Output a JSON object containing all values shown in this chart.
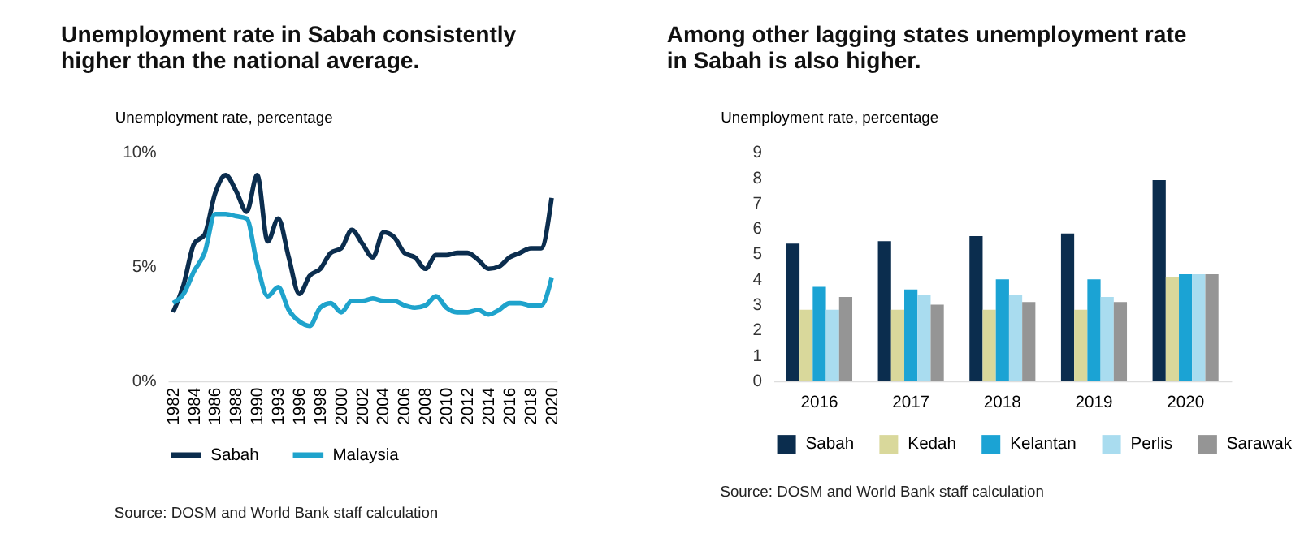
{
  "chart_data": [
    {
      "type": "line",
      "title": "Unemployment rate in Sabah consistently higher than the national average.",
      "ylabel": "Unemployment rate, percentage",
      "categories": [
        "1982",
        null,
        "1984",
        null,
        "1986",
        null,
        "1988",
        null,
        "1990",
        null,
        "1993",
        null,
        "1996",
        null,
        "1998",
        null,
        "2000",
        null,
        "2002",
        null,
        "2004",
        null,
        "2006",
        null,
        "2008",
        null,
        "2010",
        null,
        "2012",
        null,
        "2014",
        null,
        "2016",
        null,
        "2018",
        null,
        "2020"
      ],
      "series": [
        {
          "name": "Sabah",
          "color": "#0b2d4e",
          "values": [
            3.0,
            4.2,
            6.0,
            6.4,
            8.2,
            9.0,
            8.3,
            7.4,
            9.0,
            6.1,
            7.1,
            5.4,
            3.8,
            4.6,
            4.9,
            5.6,
            5.8,
            6.6,
            6.0,
            5.4,
            6.5,
            6.3,
            5.6,
            5.4,
            4.9,
            5.5,
            5.5,
            5.6,
            5.6,
            5.3,
            4.9,
            5.0,
            5.4,
            5.6,
            5.8,
            5.8,
            8.0
          ]
        },
        {
          "name": "Malaysia",
          "color": "#1fa3cc",
          "values": [
            3.4,
            3.8,
            4.8,
            5.6,
            7.3,
            7.3,
            7.2,
            7.1,
            5.1,
            3.7,
            4.1,
            3.1,
            2.6,
            2.4,
            3.2,
            3.4,
            3.0,
            3.5,
            3.5,
            3.6,
            3.5,
            3.5,
            3.3,
            3.2,
            3.3,
            3.7,
            3.2,
            3.0,
            3.0,
            3.1,
            2.9,
            3.1,
            3.4,
            3.4,
            3.3,
            3.3,
            4.5
          ]
        }
      ],
      "ylim": [
        0,
        10
      ],
      "yticks": [
        {
          "value": 0,
          "label": "0%"
        },
        {
          "value": 5,
          "label": "5%"
        },
        {
          "value": 10,
          "label": "10%"
        }
      ],
      "grid": false,
      "legend": "bottom",
      "annotations": [
        "Source: DOSM and World Bank staff calculation"
      ]
    },
    {
      "type": "bar",
      "title": "Among other lagging states unemployment rate in Sabah is also higher.",
      "ylabel": "Unemployment rate, percentage",
      "categories": [
        "2016",
        "2017",
        "2018",
        "2019",
        "2020"
      ],
      "series": [
        {
          "name": "Sabah",
          "color": "#0b2d4e",
          "values": [
            5.4,
            5.5,
            5.7,
            5.8,
            7.9
          ]
        },
        {
          "name": "Kedah",
          "color": "#d9d89b",
          "values": [
            2.8,
            2.8,
            2.8,
            2.8,
            4.1
          ]
        },
        {
          "name": "Kelantan",
          "color": "#1ba3d4",
          "values": [
            3.7,
            3.6,
            4.0,
            4.0,
            4.2
          ]
        },
        {
          "name": "Perlis",
          "color": "#a9dcef",
          "values": [
            2.8,
            3.4,
            3.4,
            3.3,
            4.2
          ]
        },
        {
          "name": "Sarawak",
          "color": "#959595",
          "values": [
            3.3,
            3.0,
            3.1,
            3.1,
            4.2
          ]
        }
      ],
      "ylim": [
        0,
        9
      ],
      "yticks": [
        0,
        1,
        2,
        3,
        4,
        5,
        6,
        7,
        8,
        9
      ],
      "grid": false,
      "legend": "bottom",
      "annotations": [
        "Source: DOSM and World Bank staff calculation"
      ]
    }
  ]
}
